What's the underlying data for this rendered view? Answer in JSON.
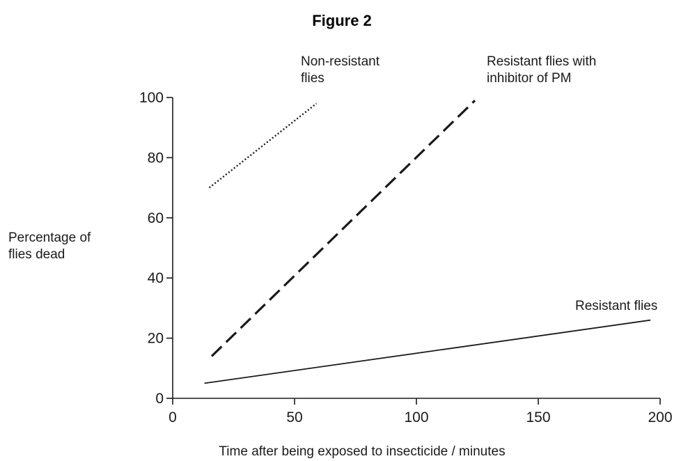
{
  "figure_title": "Figure 2",
  "chart_data": {
    "type": "line",
    "title": "Figure 2",
    "xlabel": "Time after being exposed to insecticide / minutes",
    "ylabel": [
      "Percentage of",
      "flies dead"
    ],
    "xlim": [
      0,
      200
    ],
    "ylim": [
      0,
      100
    ],
    "xticks": [
      0,
      50,
      100,
      150,
      200
    ],
    "yticks": [
      0,
      20,
      40,
      60,
      80,
      100
    ],
    "grid": false,
    "legend": "none",
    "series": [
      {
        "name": "Non-resistant flies",
        "label_lines": [
          "Non-resistant",
          "flies"
        ],
        "style": "dotted",
        "x": [
          15,
          59
        ],
        "y": [
          70,
          98
        ]
      },
      {
        "name": "Resistant flies with inhibitor of PM",
        "label_lines": [
          "Resistant flies with",
          "inhibitor of PM"
        ],
        "style": "dashed",
        "x": [
          16,
          124
        ],
        "y": [
          14,
          99
        ]
      },
      {
        "name": "Resistant flies",
        "label_lines": [
          "Resistant flies"
        ],
        "style": "solid",
        "x": [
          13,
          196
        ],
        "y": [
          5,
          26
        ]
      }
    ]
  }
}
